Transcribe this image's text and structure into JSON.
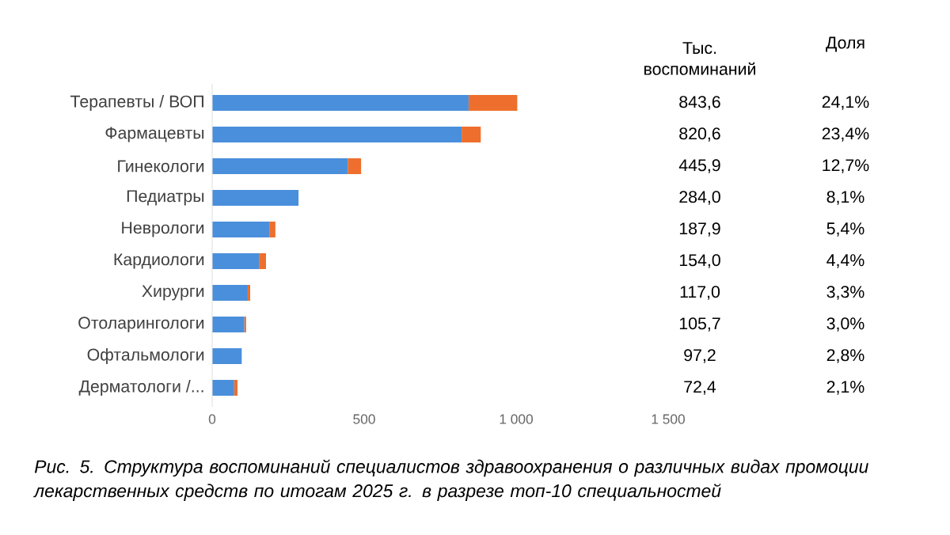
{
  "chart_data": {
    "type": "bar",
    "orientation": "horizontal",
    "stacked": true,
    "categories": [
      "Терапевты / ВОП",
      "Фармацевты",
      "Гинекологи",
      "Педиатры",
      "Неврологи",
      "Кардиологи",
      "Хирурги",
      "Отоларингологи",
      "Офтальмологи",
      "Дерматологи /..."
    ],
    "series": [
      {
        "color": "#4a8fdb",
        "values": [
          843.6,
          820.6,
          445.9,
          284.0,
          187.9,
          154.0,
          117.0,
          105.7,
          97.2,
          72.4
        ],
        "value_labels": [
          "843,6",
          "820,6",
          "445,9",
          "284,0",
          "187,9",
          "154,0",
          "117,0",
          "105,7",
          "97,2",
          "72,4"
        ]
      },
      {
        "color": "#ee6f2d",
        "values": [
          160,
          63,
          44,
          null,
          20,
          23,
          8,
          6,
          null,
          11
        ]
      }
    ],
    "xlim": [
      0,
      1500
    ],
    "xticks": [
      0,
      500,
      {
        "value": 1000,
        "label": "1 000"
      },
      {
        "value": 1500,
        "label": "1 500"
      }
    ],
    "annotations": [
      "Тыс. воспоминаний",
      "Доля",
      "24,1%",
      "23,4%",
      "12,7%",
      "8,1%",
      "5,4%",
      "4,4%",
      "3,3%",
      "3,0%",
      "2,8%",
      "2,1%",
      "Рис. 5. Структура воспоминаний специалистов здравоохранения о различных видах промоции лекарственных средств по итогам 2025 г. в разрезе топ-10 специальностей"
    ]
  }
}
